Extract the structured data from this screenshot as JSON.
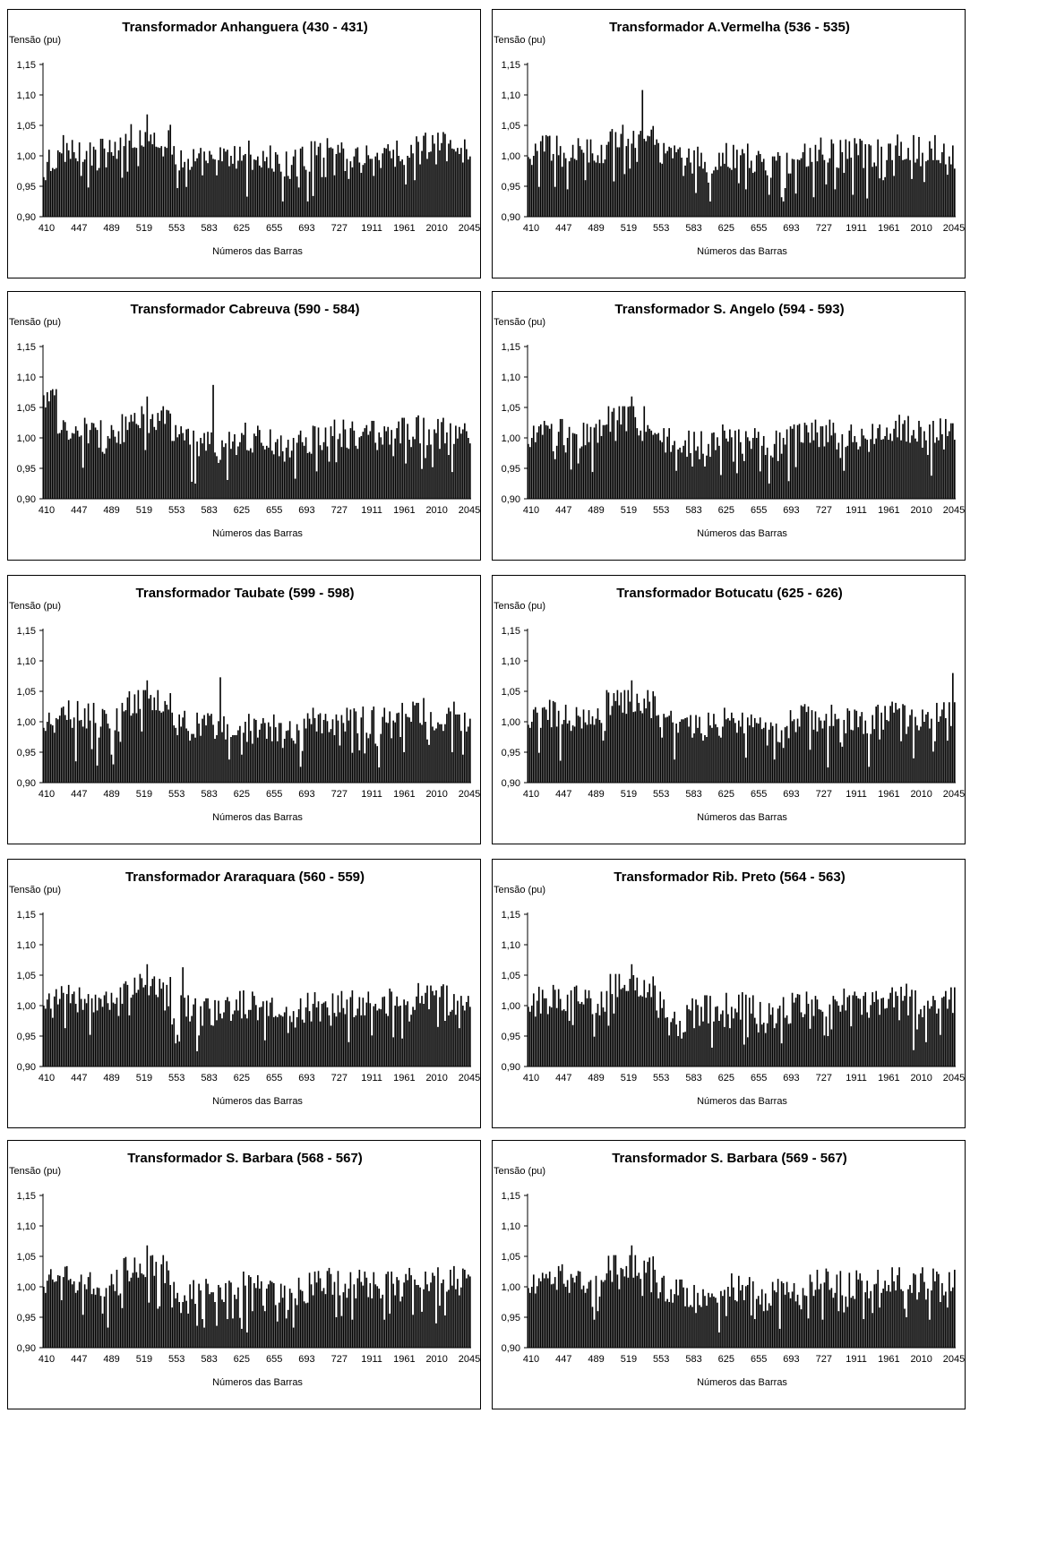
{
  "shared": {
    "ylabel": "Tensão (pu)",
    "xlabel": "Números das Barras",
    "ylim": [
      0.9,
      1.15
    ],
    "yticks": [
      "0,90",
      "0,95",
      "1,00",
      "1,05",
      "1,10",
      "1,15"
    ],
    "xticks": [
      "410",
      "447",
      "489",
      "519",
      "553",
      "583",
      "625",
      "655",
      "693",
      "727",
      "1911",
      "1961",
      "2010",
      "2045"
    ],
    "bar_color": "#000000",
    "frame_color": "#000000"
  },
  "chart_data": [
    {
      "type": "bar",
      "title": "Transformador Anhanguera (430 - 431)",
      "profile": "base",
      "spikes": [
        {
          "category": "525",
          "value": 1.068
        }
      ],
      "first_values": [
        0.965,
        0.96,
        0.99,
        1.01,
        0.975,
        0.98,
        0.978,
        0.98
      ]
    },
    {
      "type": "bar",
      "title": "Transformador A.Vermelha (536 - 535)",
      "profile": "base",
      "spikes": [
        {
          "category": "536",
          "value": 1.108
        }
      ],
      "first_values": [
        0.998,
        0.995,
        0.985,
        1.0,
        1.02
      ]
    },
    {
      "type": "bar",
      "title": "Transformador Cabreuva (590 - 584)",
      "profile": "base",
      "spikes": [
        {
          "category": "525",
          "value": 1.068
        },
        {
          "category": "590",
          "value": 1.087
        }
      ],
      "first_values": [
        1.07,
        1.05,
        1.075,
        1.06,
        1.078,
        1.08,
        1.07,
        1.08
      ]
    },
    {
      "type": "bar",
      "title": "Transformador S. Angelo (594 - 593)",
      "profile": "base",
      "spikes": [
        {
          "category": "525",
          "value": 1.068
        }
      ],
      "first_values": [
        0.99,
        0.985,
        1.0,
        1.02
      ]
    },
    {
      "type": "bar",
      "title": "Transformador Taubate (599 - 598)",
      "profile": "base",
      "spikes": [
        {
          "category": "525",
          "value": 1.068
        },
        {
          "category": "599",
          "value": 1.073
        }
      ],
      "first_values": [
        0.99,
        0.985,
        1.0,
        1.015
      ]
    },
    {
      "type": "bar",
      "title": "Transformador Botucatu (625 - 626)",
      "profile": "base",
      "spikes": [
        {
          "category": "525",
          "value": 1.068
        },
        {
          "category": "2043",
          "value": 1.08
        }
      ],
      "first_values": [
        0.995,
        0.99,
        1.0,
        1.02
      ]
    },
    {
      "type": "bar",
      "title": "Transformador Araraquara (560 - 559)",
      "profile": "base",
      "spikes": [
        {
          "category": "525",
          "value": 1.068
        },
        {
          "category": "560",
          "value": 1.063
        }
      ],
      "first_values": [
        1.0,
        0.995,
        1.01,
        1.02
      ]
    },
    {
      "type": "bar",
      "title": "Transformador Rib. Preto (564 - 563)",
      "profile": "base",
      "spikes": [
        {
          "category": "525",
          "value": 1.068
        }
      ],
      "first_values": [
        0.998,
        0.99,
        1.0,
        1.02
      ]
    },
    {
      "type": "bar",
      "title": "Transformador S. Barbara (568 - 567)",
      "profile": "base",
      "spikes": [
        {
          "category": "525",
          "value": 1.068
        }
      ],
      "first_values": [
        1.0,
        0.99,
        1.01,
        1.02
      ]
    },
    {
      "type": "bar",
      "title": "Transformador S. Barbara (569 - 567)",
      "profile": "base",
      "spikes": [
        {
          "category": "525",
          "value": 1.068
        }
      ],
      "first_values": [
        0.998,
        0.99,
        1.0,
        1.02
      ]
    }
  ]
}
